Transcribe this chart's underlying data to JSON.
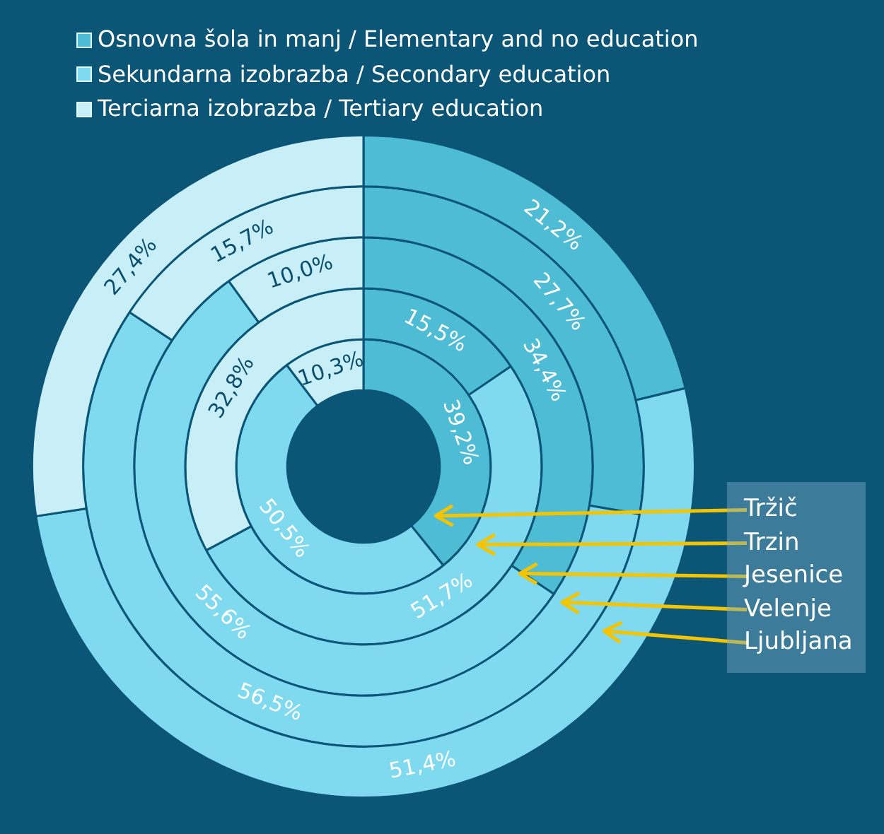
{
  "chart_data": {
    "type": "donut",
    "categories": [
      "Osnovna šola in manj / Elementary and no education",
      "Sekundarna izobrazba / Secondary education",
      "Terciarna izobrazba / Tertiary education"
    ],
    "colors": [
      "#4fbcd6",
      "#7fdaf0",
      "#c8eef8"
    ],
    "legend": "top left",
    "series": [
      {
        "name": "Tržič",
        "values": [
          39.2,
          50.5,
          10.3
        ],
        "value_labels": [
          "39,2%",
          "50,5%",
          "10,3%"
        ]
      },
      {
        "name": "Trzin",
        "values": [
          15.5,
          51.7,
          32.8
        ],
        "value_labels": [
          "15,5%",
          "51,7%",
          "32,8%"
        ]
      },
      {
        "name": "Jesenice",
        "values": [
          34.4,
          55.6,
          10.0
        ],
        "value_labels": [
          "34,4%",
          "55,6%",
          "10,0%"
        ]
      },
      {
        "name": "Velenje",
        "values": [
          27.7,
          56.5,
          15.7
        ],
        "value_labels": [
          "27,7%",
          "56,5%",
          "15,7%"
        ]
      },
      {
        "name": "Ljubljana",
        "values": [
          21.2,
          51.4,
          27.4
        ],
        "value_labels": [
          "21,2%",
          "51,4%",
          "27,4%"
        ]
      }
    ]
  }
}
